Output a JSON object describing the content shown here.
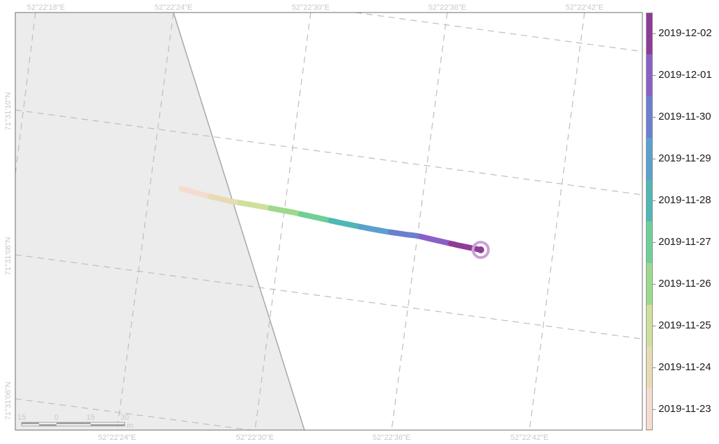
{
  "map": {
    "top_lon_labels": [
      "52°22'18\"E",
      "52°22'24\"E",
      "52°22'30\"E",
      "52°22'36\"E",
      "52°22'42\"E"
    ],
    "bottom_lon_labels": [
      "52°22'24\"E",
      "52°22'30\"E",
      "52°22'36\"E",
      "52°22'42\"E"
    ],
    "left_lat_labels": [
      "71°31'10\"N",
      "71°31'08\"N",
      "71°31'06\"N"
    ],
    "track_colors": [
      "#f4dcd0",
      "#e6dbb4",
      "#cfe09c",
      "#9dd98c",
      "#6fcf98",
      "#4fb7b4",
      "#5a9fcf",
      "#6a7fd0",
      "#8a60c8",
      "#8e3c98"
    ],
    "land_color": "#ececec",
    "end_marker_color": "#8e3c98"
  },
  "scale_bar": {
    "labels": [
      "15",
      "0",
      "15",
      "30"
    ],
    "unit": "m"
  },
  "legend": {
    "labels": [
      "2019-12-02",
      "2019-12-01",
      "2019-11-30",
      "2019-11-29",
      "2019-11-28",
      "2019-11-27",
      "2019-11-26",
      "2019-11-25",
      "2019-11-24",
      "2019-11-23"
    ],
    "colors": [
      "#8e3c98",
      "#8a60c8",
      "#6a7fd0",
      "#5a9fcf",
      "#4fb7b4",
      "#6fcf98",
      "#9dd98c",
      "#cfe09c",
      "#e6dbb4",
      "#f4dcd0"
    ]
  }
}
